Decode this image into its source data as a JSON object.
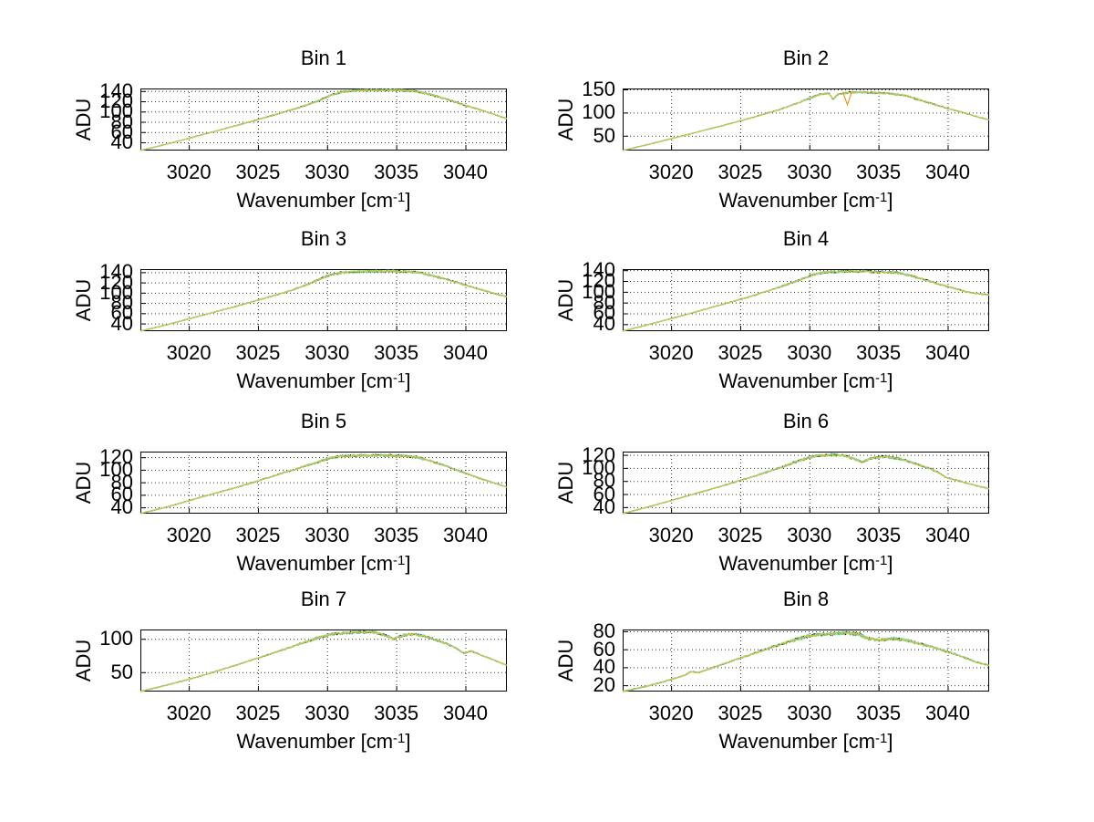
{
  "figure": {
    "background": "#ffffff",
    "ylabel": "ADU",
    "xlabel_main": "Wavenumber [cm",
    "xlabel_sup": "-1",
    "xlabel_end": "]"
  },
  "colors": {
    "axis": "#000000",
    "grid": "#333333",
    "trace_black": "#141414",
    "trace_green": "#3aad3a",
    "trace_cyan": "#72d2cb",
    "trace_yellow": "#d6c838",
    "spike_orange": "#e89a20"
  },
  "traces": [
    {
      "name": "trace-black",
      "color": "#141414",
      "offset": 0.25,
      "seed": 11
    },
    {
      "name": "trace-green",
      "color": "#3aad3a",
      "offset": -0.2,
      "seed": 23
    },
    {
      "name": "trace-cyan",
      "color": "#72d2cb",
      "offset": 0.4,
      "seed": 37
    },
    {
      "name": "trace-yellow",
      "color": "#d6c838",
      "offset": 0,
      "seed": 53
    }
  ],
  "chart_data": [
    {
      "type": "line",
      "title": "Bin 1",
      "xlabel": "Wavenumber [cm^-1]",
      "ylabel": "ADU",
      "xlim": [
        3016.5,
        3043
      ],
      "ylim": [
        24,
        145
      ],
      "xticks": [
        3020,
        3025,
        3030,
        3035,
        3040
      ],
      "yticks": [
        40,
        60,
        80,
        100,
        120,
        140
      ],
      "grid": true,
      "anchors": [
        [
          3016.5,
          24
        ],
        [
          3018.5,
          37
        ],
        [
          3021,
          55
        ],
        [
          3023.5,
          73
        ],
        [
          3026,
          92
        ],
        [
          3028,
          108
        ],
        [
          3029.3,
          120
        ],
        [
          3030.2,
          131
        ],
        [
          3031,
          138
        ],
        [
          3032,
          141
        ],
        [
          3033.5,
          142
        ],
        [
          3035,
          142
        ],
        [
          3036.3,
          140
        ],
        [
          3037.2,
          135
        ],
        [
          3038,
          129
        ],
        [
          3039,
          121
        ],
        [
          3040,
          112
        ],
        [
          3041,
          104
        ],
        [
          3042,
          95
        ],
        [
          3043,
          86
        ]
      ]
    },
    {
      "type": "line",
      "title": "Bin 2",
      "xlabel": "Wavenumber [cm^-1]",
      "ylabel": "ADU",
      "xlim": [
        3016.5,
        3043
      ],
      "ylim": [
        18,
        152
      ],
      "xticks": [
        3020,
        3025,
        3030,
        3035,
        3040
      ],
      "yticks": [
        50,
        100,
        150
      ],
      "grid": true,
      "anchors": [
        [
          3016.5,
          18
        ],
        [
          3018.5,
          32
        ],
        [
          3021,
          51
        ],
        [
          3023.5,
          70
        ],
        [
          3026,
          90
        ],
        [
          3028,
          108
        ],
        [
          3029.2,
          121
        ],
        [
          3030,
          131
        ],
        [
          3030.8,
          139
        ],
        [
          3031.4,
          142
        ],
        [
          3031.7,
          129
        ],
        [
          3032.1,
          140
        ],
        [
          3032.8,
          143
        ],
        [
          3033.5,
          144
        ],
        [
          3034.5,
          143
        ],
        [
          3035.5,
          142
        ],
        [
          3036.2,
          140
        ],
        [
          3037,
          136
        ],
        [
          3038,
          127
        ],
        [
          3039,
          118
        ],
        [
          3040,
          109
        ],
        [
          3041,
          101
        ],
        [
          3042,
          92
        ],
        [
          3043,
          84
        ]
      ],
      "spike": {
        "x": 3032.75,
        "y": 117,
        "halfwidth": 0.3
      }
    },
    {
      "type": "line",
      "title": "Bin 3",
      "xlabel": "Wavenumber [cm^-1]",
      "ylabel": "ADU",
      "xlim": [
        3016.5,
        3043
      ],
      "ylim": [
        25,
        146
      ],
      "xticks": [
        3020,
        3025,
        3030,
        3035,
        3040
      ],
      "yticks": [
        40,
        60,
        80,
        100,
        120,
        140
      ],
      "grid": true,
      "anchors": [
        [
          3016.5,
          25
        ],
        [
          3018.5,
          38
        ],
        [
          3021,
          56
        ],
        [
          3023.5,
          74
        ],
        [
          3026,
          93
        ],
        [
          3027.5,
          105
        ],
        [
          3028.6,
          116
        ],
        [
          3029.5,
          127
        ],
        [
          3030.3,
          135
        ],
        [
          3031,
          139
        ],
        [
          3032,
          141
        ],
        [
          3033.5,
          142
        ],
        [
          3035,
          142
        ],
        [
          3036.5,
          140
        ],
        [
          3037.5,
          134
        ],
        [
          3038.5,
          127
        ],
        [
          3039.5,
          119
        ],
        [
          3040.5,
          111
        ],
        [
          3041.5,
          103
        ],
        [
          3042.3,
          97
        ],
        [
          3043,
          92
        ]
      ]
    },
    {
      "type": "line",
      "title": "Bin 4",
      "xlabel": "Wavenumber [cm^-1]",
      "ylabel": "ADU",
      "xlim": [
        3016.5,
        3043
      ],
      "ylim": [
        27,
        142
      ],
      "xticks": [
        3020,
        3025,
        3030,
        3035,
        3040
      ],
      "yticks": [
        40,
        60,
        80,
        100,
        120,
        140
      ],
      "grid": true,
      "anchors": [
        [
          3016.5,
          27
        ],
        [
          3018.5,
          40
        ],
        [
          3021,
          57
        ],
        [
          3023.5,
          75
        ],
        [
          3026,
          93
        ],
        [
          3028,
          110
        ],
        [
          3029.3,
          122
        ],
        [
          3030.2,
          131
        ],
        [
          3031,
          136
        ],
        [
          3032,
          137
        ],
        [
          3033,
          138
        ],
        [
          3034.5,
          137
        ],
        [
          3036,
          136
        ],
        [
          3036.8,
          133
        ],
        [
          3037.6,
          128
        ],
        [
          3038.5,
          121
        ],
        [
          3039.5,
          113
        ],
        [
          3040.5,
          106
        ],
        [
          3041.5,
          99
        ],
        [
          3042.3,
          96
        ],
        [
          3043,
          94
        ]
      ]
    },
    {
      "type": "line",
      "title": "Bin 5",
      "xlabel": "Wavenumber [cm^-1]",
      "ylabel": "ADU",
      "xlim": [
        3016.5,
        3043
      ],
      "ylim": [
        30,
        129
      ],
      "xticks": [
        3020,
        3025,
        3030,
        3035,
        3040
      ],
      "yticks": [
        40,
        60,
        80,
        100,
        120
      ],
      "grid": true,
      "anchors": [
        [
          3016.5,
          30
        ],
        [
          3018.5,
          41
        ],
        [
          3021,
          57
        ],
        [
          3023.5,
          72
        ],
        [
          3026,
          89
        ],
        [
          3028,
          103
        ],
        [
          3029.3,
          112
        ],
        [
          3030.3,
          119
        ],
        [
          3031.2,
          122
        ],
        [
          3032.5,
          123
        ],
        [
          3034,
          123
        ],
        [
          3035.5,
          122
        ],
        [
          3036.5,
          120
        ],
        [
          3037.3,
          115
        ],
        [
          3038.2,
          109
        ],
        [
          3039.2,
          101
        ],
        [
          3040.2,
          93
        ],
        [
          3041.2,
          85
        ],
        [
          3042.2,
          78
        ],
        [
          3043,
          72
        ]
      ]
    },
    {
      "type": "line",
      "title": "Bin 6",
      "xlabel": "Wavenumber [cm^-1]",
      "ylabel": "ADU",
      "xlim": [
        3016.5,
        3043
      ],
      "ylim": [
        30,
        125
      ],
      "xticks": [
        3020,
        3025,
        3030,
        3035,
        3040
      ],
      "yticks": [
        40,
        60,
        80,
        100,
        120
      ],
      "grid": true,
      "anchors": [
        [
          3016.5,
          30
        ],
        [
          3018.5,
          41
        ],
        [
          3021,
          56
        ],
        [
          3023.5,
          71
        ],
        [
          3026,
          87
        ],
        [
          3028,
          101
        ],
        [
          3029.4,
          112
        ],
        [
          3030.4,
          118
        ],
        [
          3031.5,
          120
        ],
        [
          3032.5,
          119
        ],
        [
          3033.2,
          114
        ],
        [
          3033.8,
          109
        ],
        [
          3034.5,
          115
        ],
        [
          3035.5,
          117
        ],
        [
          3036.3,
          115
        ],
        [
          3037,
          111
        ],
        [
          3038,
          104
        ],
        [
          3038.7,
          99
        ],
        [
          3039.3,
          93
        ],
        [
          3039.9,
          85
        ],
        [
          3040.5,
          82
        ],
        [
          3041.3,
          77
        ],
        [
          3042.2,
          72
        ],
        [
          3043,
          68
        ]
      ]
    },
    {
      "type": "line",
      "title": "Bin 7",
      "xlabel": "Wavenumber [cm^-1]",
      "ylabel": "ADU",
      "xlim": [
        3016.5,
        3043
      ],
      "ylim": [
        21,
        114
      ],
      "xticks": [
        3020,
        3025,
        3030,
        3035,
        3040
      ],
      "yticks": [
        50,
        100
      ],
      "grid": true,
      "anchors": [
        [
          3016.5,
          21
        ],
        [
          3018.5,
          31
        ],
        [
          3021,
          45
        ],
        [
          3023.5,
          61
        ],
        [
          3026,
          78
        ],
        [
          3028,
          92
        ],
        [
          3029.4,
          102
        ],
        [
          3030.4,
          107
        ],
        [
          3031.5,
          109
        ],
        [
          3032.5,
          110
        ],
        [
          3033.5,
          110
        ],
        [
          3034.2,
          105
        ],
        [
          3034.8,
          100
        ],
        [
          3035.5,
          105
        ],
        [
          3036.3,
          107
        ],
        [
          3037,
          104
        ],
        [
          3037.8,
          99
        ],
        [
          3038.6,
          93
        ],
        [
          3039.4,
          85
        ],
        [
          3039.9,
          78
        ],
        [
          3040.4,
          82
        ],
        [
          3041.2,
          75
        ],
        [
          3042.2,
          67
        ],
        [
          3043,
          60
        ]
      ]
    },
    {
      "type": "line",
      "title": "Bin 8",
      "xlabel": "Wavenumber [cm^-1]",
      "ylabel": "ADU",
      "xlim": [
        3016.5,
        3043
      ],
      "ylim": [
        13,
        82
      ],
      "xticks": [
        3020,
        3025,
        3030,
        3035,
        3040
      ],
      "yticks": [
        20,
        40,
        60,
        80
      ],
      "grid": true,
      "anchors": [
        [
          3016.5,
          13
        ],
        [
          3018,
          18
        ],
        [
          3019.5,
          24
        ],
        [
          3021,
          31
        ],
        [
          3021.4,
          35
        ],
        [
          3022,
          34
        ],
        [
          3023.5,
          42
        ],
        [
          3025,
          50
        ],
        [
          3026.5,
          58
        ],
        [
          3028,
          66
        ],
        [
          3029.3,
          72
        ],
        [
          3030.3,
          76
        ],
        [
          3031.5,
          77
        ],
        [
          3032.5,
          78
        ],
        [
          3033.5,
          77
        ],
        [
          3034.2,
          72
        ],
        [
          3035,
          70
        ],
        [
          3036,
          72
        ],
        [
          3037,
          70
        ],
        [
          3038,
          66
        ],
        [
          3039,
          62
        ],
        [
          3040,
          57
        ],
        [
          3041,
          52
        ],
        [
          3042,
          46
        ],
        [
          3043,
          42
        ]
      ]
    }
  ]
}
